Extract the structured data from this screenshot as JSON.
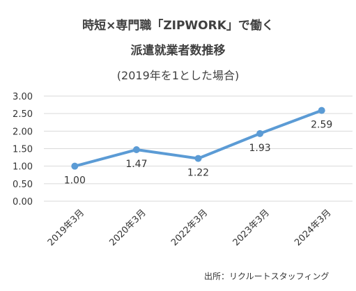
{
  "chart_data": {
    "type": "line",
    "title_line1": "時短×専門職「ZIPWORK」で働く",
    "title_line2": "派遣就業者数推移",
    "subtitle": "(2019年を1とした場合)",
    "categories": [
      "2019年3月",
      "2020年3月",
      "2022年3月",
      "2023年3月",
      "2024年3月"
    ],
    "series": [
      {
        "values": [
          1.0,
          1.47,
          1.22,
          1.93,
          2.59
        ]
      }
    ],
    "data_labels": [
      "1.00",
      "1.47",
      "1.22",
      "1.93",
      "2.59"
    ],
    "y_ticks": [
      "3.00",
      "2.50",
      "2.00",
      "1.50",
      "1.00",
      "0.50",
      "0.00"
    ],
    "ylim": [
      0,
      3
    ],
    "grid": true,
    "line_color": "#5B9BD5",
    "source": "出所：リクルートスタッフィング"
  }
}
